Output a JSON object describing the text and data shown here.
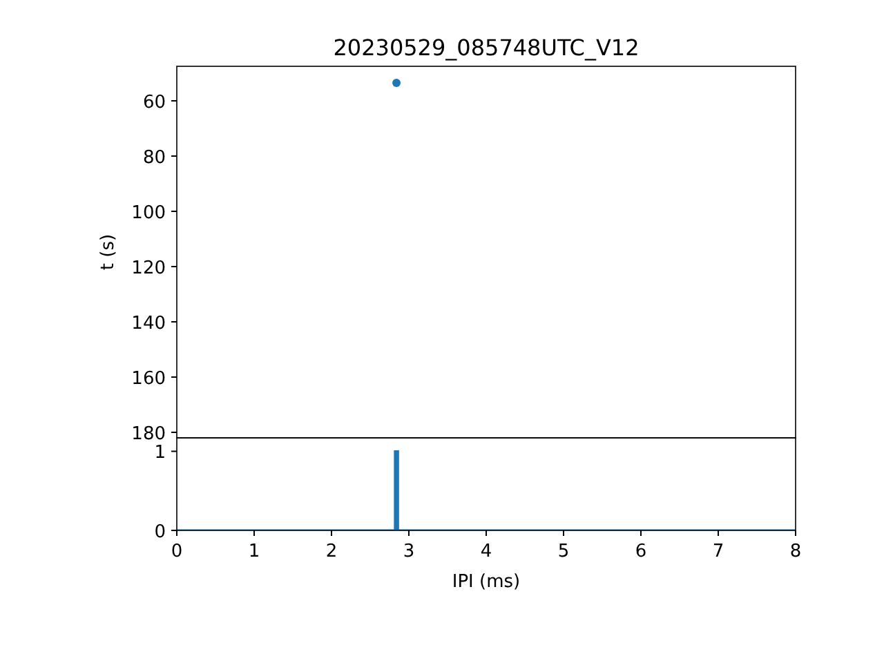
{
  "chart_data": [
    {
      "type": "scatter",
      "title": "20230529_085748UTC_V12",
      "ylabel": "t (s)",
      "x": [
        2.84
      ],
      "values": [
        53.5
      ],
      "color": "#1f77b4",
      "marker": "circle",
      "xlim": [
        0,
        8
      ],
      "ylim": [
        182,
        47.5
      ],
      "yticks": [
        60,
        80,
        100,
        120,
        140,
        160,
        180
      ],
      "tick_labels": "y"
    },
    {
      "type": "histogram",
      "xlabel": "IPI (ms)",
      "bins": [
        0,
        2.82,
        2.86,
        8
      ],
      "values": [
        0,
        1,
        0
      ],
      "color": "#1f77b4",
      "xlim": [
        0,
        8
      ],
      "xticks": [
        0,
        1,
        2,
        3,
        4,
        5,
        6,
        7,
        8
      ],
      "ylim": [
        0,
        1.17
      ],
      "yticks": [
        0,
        1
      ]
    }
  ]
}
